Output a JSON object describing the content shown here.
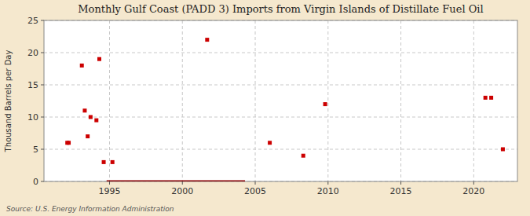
{
  "chart_data": {
    "type": "scatter",
    "title": "Monthly Gulf Coast (PADD 3) Imports from Virgin Islands of Distillate Fuel Oil",
    "ylabel": "Thousand Barrels per Day",
    "annotations": [
      "Source: U.S. Energy Information Administration"
    ],
    "xlim": [
      1990.5,
      2023
    ],
    "ylim": [
      0,
      25
    ],
    "xticks": [
      1995,
      2000,
      2005,
      2010,
      2015,
      2020
    ],
    "yticks": [
      0,
      5,
      10,
      15,
      20,
      25
    ],
    "grid": true,
    "series": [
      {
        "type": "scatter",
        "color": "#cc0000",
        "marker": "square",
        "x": [
          1992.1,
          1992.2,
          1993.1,
          1993.3,
          1993.5,
          1993.7,
          1994.1,
          1994.3,
          1994.6,
          1995.2,
          2001.7,
          2006.0,
          2008.3,
          2009.8,
          2020.8,
          2021.2,
          2022.0
        ],
        "values": [
          6,
          6,
          18,
          11,
          7,
          10,
          9.5,
          19,
          3,
          3,
          22,
          6,
          4,
          12,
          13,
          13,
          5
        ]
      },
      {
        "type": "line",
        "color": "#8b0000",
        "line_style": "solid",
        "x": [
          1994.8,
          2004.3
        ],
        "values": [
          0,
          0
        ]
      }
    ]
  }
}
